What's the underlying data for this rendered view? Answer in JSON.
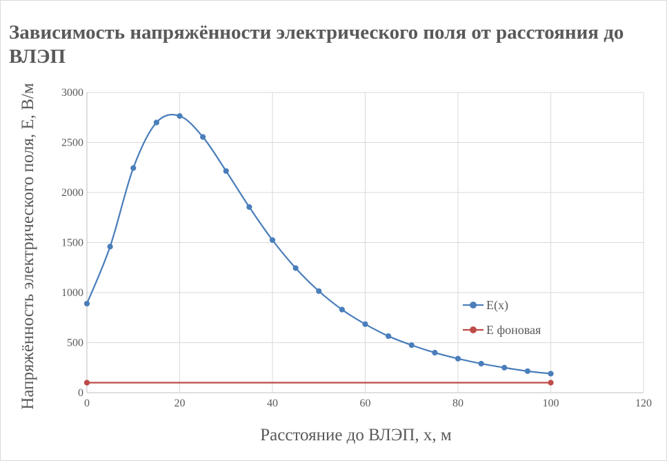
{
  "chart_data": {
    "type": "scatter",
    "title": "Зависимость напряжённости электрического поля от расстояния до ВЛЭП",
    "xlabel": "Расстояние до ВЛЭП, x, м",
    "ylabel": "Напряжённость электрического поля, E, В/м",
    "xlim": [
      0,
      120
    ],
    "ylim": [
      0,
      3000
    ],
    "xticks": [
      "0",
      "20",
      "40",
      "60",
      "80",
      "100",
      "120"
    ],
    "yticks": [
      "0",
      "500",
      "1000",
      "1500",
      "2000",
      "2500",
      "3000"
    ],
    "grid": true,
    "legend_position": "right",
    "smooth_lines": true,
    "series": [
      {
        "name": "E(x)",
        "color": "#4a7ebb",
        "x": [
          0,
          5,
          10,
          15,
          20,
          25,
          30,
          35,
          40,
          45,
          50,
          55,
          60,
          65,
          70,
          75,
          80,
          85,
          90,
          95,
          100
        ],
        "y": [
          890,
          1460,
          2245,
          2700,
          2765,
          2555,
          2215,
          1855,
          1525,
          1245,
          1015,
          830,
          685,
          565,
          475,
          400,
          340,
          290,
          250,
          215,
          190
        ]
      },
      {
        "name": "E фоновая",
        "color": "#be4b48",
        "x": [
          0,
          100
        ],
        "y": [
          100,
          100
        ]
      }
    ]
  }
}
